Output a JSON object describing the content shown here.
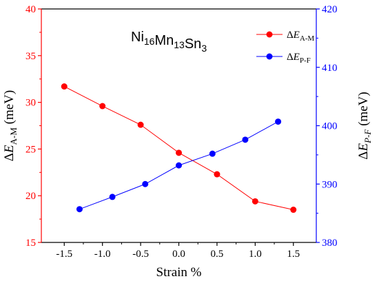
{
  "chart_data": {
    "type": "line",
    "title": {
      "base": "Ni",
      "parts": [
        {
          "t": "Ni",
          "sub": "16"
        },
        {
          "t": "Mn",
          "sub": "13"
        },
        {
          "t": "Sn",
          "sub": "3"
        }
      ]
    },
    "xlabel": "Strain %",
    "ylabel_left": {
      "prefix": "ΔE",
      "sub": "A-M",
      "suffix": " (meV)"
    },
    "ylabel_right": {
      "prefix": "ΔE",
      "sub": "P-F",
      "suffix": " (meV)"
    },
    "xlim": [
      -1.8,
      1.8
    ],
    "ylim_left": [
      15,
      40
    ],
    "ylim_right": [
      380,
      420
    ],
    "x_ticks": [
      -1.5,
      -1.0,
      -0.5,
      0.0,
      0.5,
      1.0,
      1.5
    ],
    "x_tick_labels": [
      "-1.5",
      "-1.0",
      "-0.5",
      "0.0",
      "0.5",
      "1.0",
      "1.5"
    ],
    "y_left_ticks": [
      15,
      20,
      25,
      30,
      35,
      40
    ],
    "y_left_tick_labels": [
      "15",
      "20",
      "25",
      "30",
      "35",
      "40"
    ],
    "y_right_ticks": [
      380,
      390,
      400,
      410,
      420
    ],
    "y_right_tick_labels": [
      "380",
      "390",
      "400",
      "410",
      "420"
    ],
    "legend_position": "top-right",
    "grid": false,
    "colors": {
      "left": "#ff0000",
      "right": "#0000ff",
      "axis": "#000000"
    },
    "series": [
      {
        "name": "ΔE",
        "name_sub": "A-M",
        "axis": "left",
        "color": "#ff0000",
        "x": [
          -1.5,
          -1.0,
          -0.5,
          0.0,
          0.5,
          1.0,
          1.5
        ],
        "y": [
          31.7,
          29.6,
          27.6,
          24.6,
          22.3,
          19.4,
          18.5
        ]
      },
      {
        "name": "ΔE",
        "name_sub": "P-F",
        "axis": "right",
        "color": "#0000ff",
        "x": [
          -1.3,
          -0.87,
          -0.44,
          0.0,
          0.44,
          0.87,
          1.3
        ],
        "y": [
          385.7,
          387.8,
          390.0,
          393.2,
          395.2,
          397.6,
          400.7
        ]
      }
    ]
  }
}
